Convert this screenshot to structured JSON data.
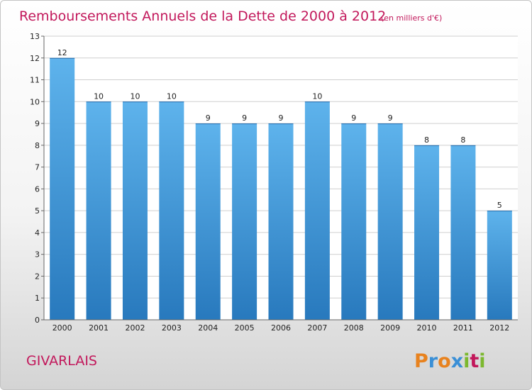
{
  "chart_data": {
    "type": "bar",
    "title": "Remboursements Annuels de la Dette de 2000 à 2012",
    "unit": "(en milliers d'€)",
    "categories": [
      "2000",
      "2001",
      "2002",
      "2003",
      "2004",
      "2005",
      "2006",
      "2007",
      "2008",
      "2009",
      "2010",
      "2011",
      "2012"
    ],
    "values": [
      12,
      10,
      10,
      10,
      9,
      9,
      9,
      10,
      9,
      9,
      8,
      8,
      5
    ],
    "ylim": [
      0,
      13
    ],
    "yticks": [
      "0",
      "1",
      "2",
      "3",
      "4",
      "5",
      "6",
      "7",
      "8",
      "9",
      "10",
      "11",
      "12",
      "13"
    ],
    "grid": true,
    "bar_color": "#4a9fe0"
  },
  "commune": "GIVARLAIS",
  "logo": {
    "letters": [
      "P",
      "r",
      "o",
      "x",
      "i",
      "t",
      "i"
    ],
    "colors": [
      "#e8821e",
      "#3a8fd6",
      "#e8821e",
      "#3a8fd6",
      "#7cb82f",
      "#c2185b",
      "#7cb82f"
    ]
  }
}
